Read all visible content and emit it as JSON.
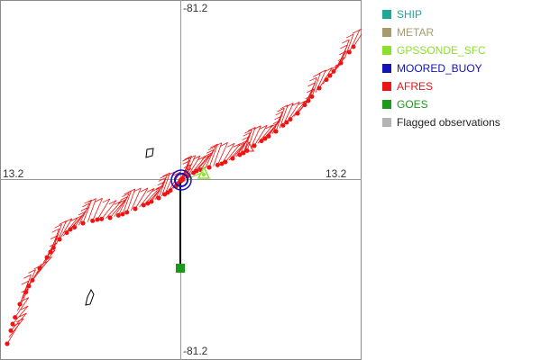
{
  "map": {
    "axis_labels": {
      "top": "-81.2",
      "bottom": "-81.2",
      "left": "13.2",
      "right": "13.2"
    }
  },
  "legend": {
    "items": [
      {
        "label": "SHIP",
        "color": "#1fa89a",
        "text_color": "#1fa89a"
      },
      {
        "label": "METAR",
        "color": "#a89a6a",
        "text_color": "#a89a6a"
      },
      {
        "label": "GPSSONDE_SFC",
        "color": "#8ae02a",
        "text_color": "#8ae02a"
      },
      {
        "label": "MOORED_BUOY",
        "color": "#1414b4",
        "text_color": "#1414b4"
      },
      {
        "label": "AFRES",
        "color": "#ee1414",
        "text_color": "#ee1414"
      },
      {
        "label": "GOES",
        "color": "#1a9a1a",
        "text_color": "#1a9a1a"
      },
      {
        "label": "Flagged observations",
        "color": "#b4b4b4",
        "text_color": "#222222"
      }
    ]
  },
  "colors": {
    "afres": "#ee1414",
    "moored_buoy": "#1414b4",
    "gpssonde": "#8ae02a",
    "goes": "#1a9a1a",
    "frame": "#888888"
  }
}
